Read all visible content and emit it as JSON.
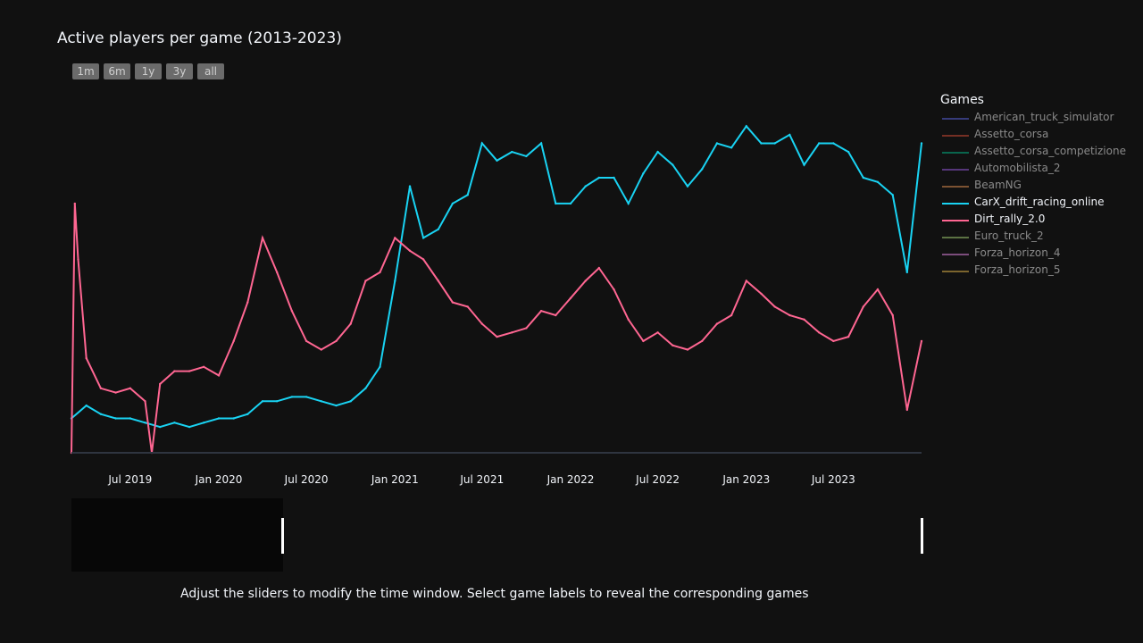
{
  "chart_data": {
    "type": "line",
    "title": "Active players per game (2013-2023)",
    "xlabel": "",
    "ylabel": "",
    "x_range": [
      "2019-03-01",
      "2023-12-31"
    ],
    "x_ticks": [
      "Jul 2019",
      "Jan 2020",
      "Jul 2020",
      "Jan 2021",
      "Jul 2021",
      "Jan 2022",
      "Jul 2022",
      "Jan 2023",
      "Jul 2023"
    ],
    "x_tick_dates": [
      "2019-07-01",
      "2020-01-01",
      "2020-07-01",
      "2021-01-01",
      "2021-07-01",
      "2022-01-01",
      "2022-07-01",
      "2023-01-01",
      "2023-07-01"
    ],
    "grid": false,
    "legend_placement": "right",
    "series": [
      {
        "name": "CarX_drift_racing_online",
        "color": "#19d3f3",
        "visible": true,
        "x": [
          "2019-03-01",
          "2019-04-01",
          "2019-05-01",
          "2019-06-01",
          "2019-07-01",
          "2019-08-01",
          "2019-09-01",
          "2019-10-01",
          "2019-11-01",
          "2019-12-01",
          "2020-01-01",
          "2020-02-01",
          "2020-03-01",
          "2020-04-01",
          "2020-05-01",
          "2020-06-01",
          "2020-07-01",
          "2020-08-01",
          "2020-09-01",
          "2020-10-01",
          "2020-11-01",
          "2020-12-01",
          "2021-01-01",
          "2021-02-01",
          "2021-03-01",
          "2021-04-01",
          "2021-05-01",
          "2021-06-01",
          "2021-07-01",
          "2021-08-01",
          "2021-09-01",
          "2021-10-01",
          "2021-11-01",
          "2021-12-01",
          "2022-01-01",
          "2022-02-01",
          "2022-03-01",
          "2022-04-01",
          "2022-05-01",
          "2022-06-01",
          "2022-07-01",
          "2022-08-01",
          "2022-09-01",
          "2022-10-01",
          "2022-11-01",
          "2022-12-01",
          "2023-01-01",
          "2023-02-01",
          "2023-03-01",
          "2023-04-01",
          "2023-05-01",
          "2023-06-01",
          "2023-07-01",
          "2023-08-01",
          "2023-09-01",
          "2023-10-01",
          "2023-11-01",
          "2023-12-01",
          "2023-12-31"
        ],
        "values": [
          8,
          11,
          9,
          8,
          8,
          7,
          6,
          7,
          6,
          7,
          8,
          8,
          9,
          12,
          12,
          13,
          13,
          12,
          11,
          12,
          15,
          20,
          40,
          62,
          50,
          52,
          58,
          60,
          72,
          68,
          70,
          69,
          72,
          58,
          58,
          62,
          64,
          64,
          58,
          65,
          70,
          67,
          62,
          66,
          72,
          71,
          76,
          72,
          72,
          74,
          67,
          72,
          72,
          70,
          64,
          63,
          60,
          42,
          72
        ]
      },
      {
        "name": "Dirt_rally_2.0",
        "color": "#ff6692",
        "visible": true,
        "x": [
          "2019-03-01",
          "2019-03-08",
          "2019-03-15",
          "2019-04-01",
          "2019-05-01",
          "2019-06-01",
          "2019-07-01",
          "2019-08-01",
          "2019-08-15",
          "2019-09-01",
          "2019-10-01",
          "2019-11-01",
          "2019-12-01",
          "2020-01-01",
          "2020-02-01",
          "2020-03-01",
          "2020-04-01",
          "2020-05-01",
          "2020-06-01",
          "2020-07-01",
          "2020-08-01",
          "2020-09-01",
          "2020-10-01",
          "2020-11-01",
          "2020-12-01",
          "2021-01-01",
          "2021-02-01",
          "2021-03-01",
          "2021-04-01",
          "2021-05-01",
          "2021-06-01",
          "2021-07-01",
          "2021-08-01",
          "2021-09-01",
          "2021-10-01",
          "2021-11-01",
          "2021-12-01",
          "2022-01-01",
          "2022-02-01",
          "2022-03-01",
          "2022-04-01",
          "2022-05-01",
          "2022-06-01",
          "2022-07-01",
          "2022-08-01",
          "2022-09-01",
          "2022-10-01",
          "2022-11-01",
          "2022-12-01",
          "2023-01-01",
          "2023-02-01",
          "2023-03-01",
          "2023-04-01",
          "2023-05-01",
          "2023-06-01",
          "2023-07-01",
          "2023-08-01",
          "2023-09-01",
          "2023-10-01",
          "2023-11-01",
          "2023-12-01",
          "2023-12-31"
        ],
        "values": [
          0,
          58,
          45,
          22,
          15,
          14,
          15,
          12,
          0,
          16,
          19,
          19,
          20,
          18,
          26,
          35,
          50,
          42,
          33,
          26,
          24,
          26,
          30,
          40,
          42,
          50,
          47,
          45,
          40,
          35,
          34,
          30,
          27,
          28,
          29,
          33,
          32,
          36,
          40,
          43,
          38,
          31,
          26,
          28,
          25,
          24,
          26,
          30,
          32,
          40,
          37,
          34,
          32,
          31,
          28,
          26,
          27,
          34,
          38,
          32,
          10,
          26
        ]
      }
    ]
  },
  "legend": {
    "title": "Games",
    "items": [
      {
        "label": "American_truck_simulator",
        "color": "#636efa",
        "shown": false
      },
      {
        "label": "Assetto_corsa",
        "color": "#ef553b",
        "shown": false
      },
      {
        "label": "Assetto_corsa_competizione",
        "color": "#00cc96",
        "shown": false
      },
      {
        "label": "Automobilista_2",
        "color": "#ab63fa",
        "shown": false
      },
      {
        "label": "BeamNG",
        "color": "#ffa15a",
        "shown": false
      },
      {
        "label": "CarX_drift_racing_online",
        "color": "#19d3f3",
        "shown": true
      },
      {
        "label": "Dirt_rally_2.0",
        "color": "#ff6692",
        "shown": true
      },
      {
        "label": "Euro_truck_2",
        "color": "#b6e880",
        "shown": false
      },
      {
        "label": "Forza_horizon_4",
        "color": "#ff97ff",
        "shown": false
      },
      {
        "label": "Forza_horizon_5",
        "color": "#fecb52",
        "shown": false
      }
    ]
  },
  "range_selector": {
    "buttons": [
      "1m",
      "6m",
      "1y",
      "3y",
      "all"
    ]
  },
  "caption": "Adjust the sliders to modify the time window. Select game labels to reveal the corresponding games"
}
